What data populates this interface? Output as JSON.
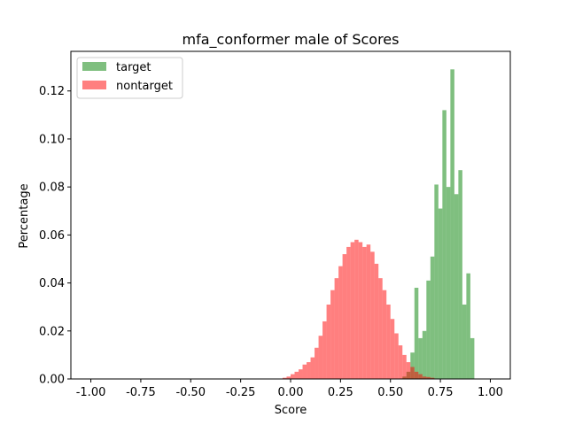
{
  "chart_data": {
    "type": "bar",
    "title": "mfa_conformer male of Scores",
    "xlabel": "Score",
    "ylabel": "Percentage",
    "xlim": [
      -1.1,
      1.1
    ],
    "ylim": [
      0.0,
      0.1365
    ],
    "xticks": [
      "-1.00",
      "-0.75",
      "-0.50",
      "-0.25",
      "0.00",
      "0.25",
      "0.50",
      "0.75",
      "1.00"
    ],
    "yticks": [
      "0.00",
      "0.02",
      "0.04",
      "0.06",
      "0.08",
      "0.10",
      "0.12"
    ],
    "grid": false,
    "legend_position": "top-left",
    "bin_width": 0.02,
    "series": [
      {
        "name": "target",
        "color": "#008000",
        "opacity": 0.5,
        "bin_starts": [
          0.56,
          0.58,
          0.6,
          0.62,
          0.64,
          0.66,
          0.68,
          0.7,
          0.72,
          0.74,
          0.76,
          0.78,
          0.8,
          0.82,
          0.84,
          0.86,
          0.88,
          0.9
        ],
        "values": [
          0.001,
          0.003,
          0.011,
          0.038,
          0.017,
          0.02,
          0.041,
          0.051,
          0.081,
          0.071,
          0.112,
          0.08,
          0.129,
          0.077,
          0.087,
          0.031,
          0.044,
          0.017
        ]
      },
      {
        "name": "nontarget",
        "color": "#ff0000",
        "opacity": 0.5,
        "bin_starts": [
          -0.04,
          -0.02,
          0.0,
          0.02,
          0.04,
          0.06,
          0.08,
          0.1,
          0.12,
          0.14,
          0.16,
          0.18,
          0.2,
          0.22,
          0.24,
          0.26,
          0.28,
          0.3,
          0.32,
          0.34,
          0.36,
          0.38,
          0.4,
          0.42,
          0.44,
          0.46,
          0.48,
          0.5,
          0.52,
          0.54,
          0.56,
          0.58,
          0.6,
          0.62,
          0.64,
          0.66,
          0.68,
          0.7
        ],
        "values": [
          0.0005,
          0.001,
          0.002,
          0.003,
          0.004,
          0.006,
          0.007,
          0.009,
          0.013,
          0.018,
          0.024,
          0.031,
          0.037,
          0.042,
          0.047,
          0.052,
          0.055,
          0.057,
          0.058,
          0.057,
          0.055,
          0.056,
          0.053,
          0.048,
          0.042,
          0.037,
          0.031,
          0.025,
          0.019,
          0.014,
          0.01,
          0.007,
          0.005,
          0.003,
          0.002,
          0.001,
          0.0008,
          0.0005
        ]
      }
    ]
  }
}
